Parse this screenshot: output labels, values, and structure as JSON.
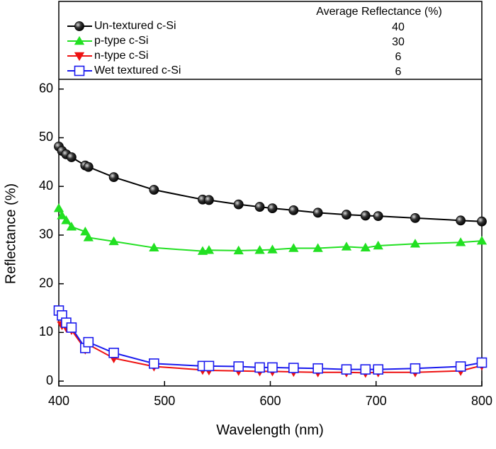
{
  "chart_data": {
    "type": "line",
    "xlabel": "Wavelength (nm)",
    "ylabel": "Reflectance (%)",
    "legend_header": "Average Reflectance (%)",
    "x": [
      400,
      403,
      407,
      412,
      425,
      428,
      452,
      490,
      536,
      542,
      570,
      590,
      602,
      622,
      645,
      672,
      690,
      702,
      737,
      780,
      800
    ],
    "series": [
      {
        "name": "Un-textured c-Si",
        "color": "#000000",
        "marker": "circle",
        "average": 40,
        "values": [
          48.2,
          47.3,
          46.6,
          46,
          44.3,
          44,
          41.9,
          39.3,
          37.3,
          37.2,
          36.3,
          35.8,
          35.5,
          35.1,
          34.6,
          34.2,
          34,
          33.9,
          33.5,
          33,
          32.8
        ]
      },
      {
        "name": "p-type c-Si",
        "color": "#22e022",
        "marker": "triangle",
        "average": 30,
        "values": [
          35.5,
          34,
          33,
          31.7,
          30.7,
          29.5,
          28.7,
          27.4,
          26.7,
          26.9,
          26.8,
          26.9,
          27,
          27.3,
          27.3,
          27.6,
          27.4,
          27.8,
          28.2,
          28.5,
          28.8
        ]
      },
      {
        "name": "n-type c-Si",
        "color": "#ee1111",
        "marker": "triangle-down",
        "average": 6,
        "values": [
          14.5,
          11.5,
          11,
          10.5,
          6.5,
          7.5,
          4.7,
          3,
          2.3,
          2.2,
          2.1,
          2,
          2,
          1.9,
          1.8,
          1.8,
          1.7,
          1.8,
          1.8,
          2.1,
          3.2
        ]
      },
      {
        "name": "Wet textured c-Si",
        "color": "#1a1aee",
        "marker": "square",
        "average": 6,
        "values": [
          14.5,
          13.5,
          12,
          11,
          6.8,
          8,
          5.8,
          3.6,
          3.1,
          3.1,
          3,
          2.8,
          2.8,
          2.7,
          2.6,
          2.4,
          2.4,
          2.4,
          2.6,
          3,
          3.8
        ]
      }
    ],
    "xlim": [
      400,
      800
    ],
    "ylim": [
      -1,
      62
    ],
    "xticks": [
      400,
      500,
      600,
      700,
      800
    ],
    "yticks": [
      0,
      10,
      20,
      30,
      40,
      50,
      60
    ],
    "grid": false
  }
}
